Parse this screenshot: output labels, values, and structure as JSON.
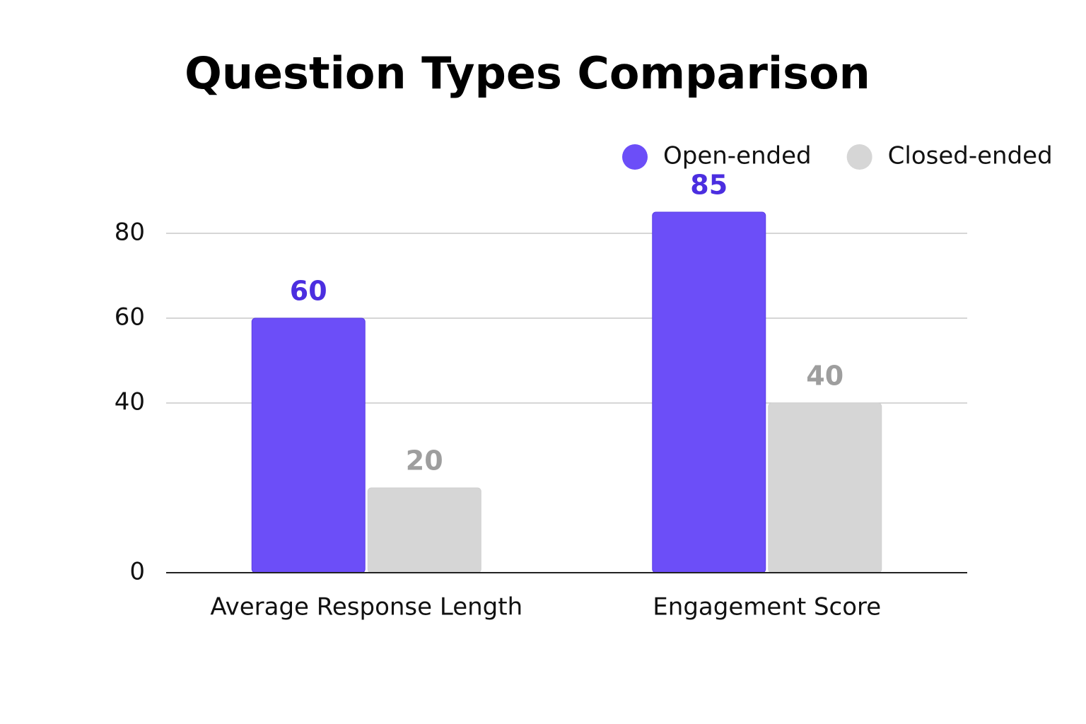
{
  "chart_data": {
    "type": "bar",
    "title": "Question Types Comparison",
    "categories": [
      "Average Response Length",
      "Engagement Score"
    ],
    "series": [
      {
        "name": "Open-ended",
        "color": "#6c4ef8",
        "label_color": "#4b2ee0",
        "values": [
          60,
          85
        ]
      },
      {
        "name": "Closed-ended",
        "color": "#d6d6d6",
        "label_color": "#9e9e9e",
        "values": [
          20,
          40
        ]
      }
    ],
    "ylim": [
      0,
      90
    ],
    "yticks": [
      0,
      40,
      60,
      80
    ],
    "grid": true,
    "legend": "top-right"
  }
}
